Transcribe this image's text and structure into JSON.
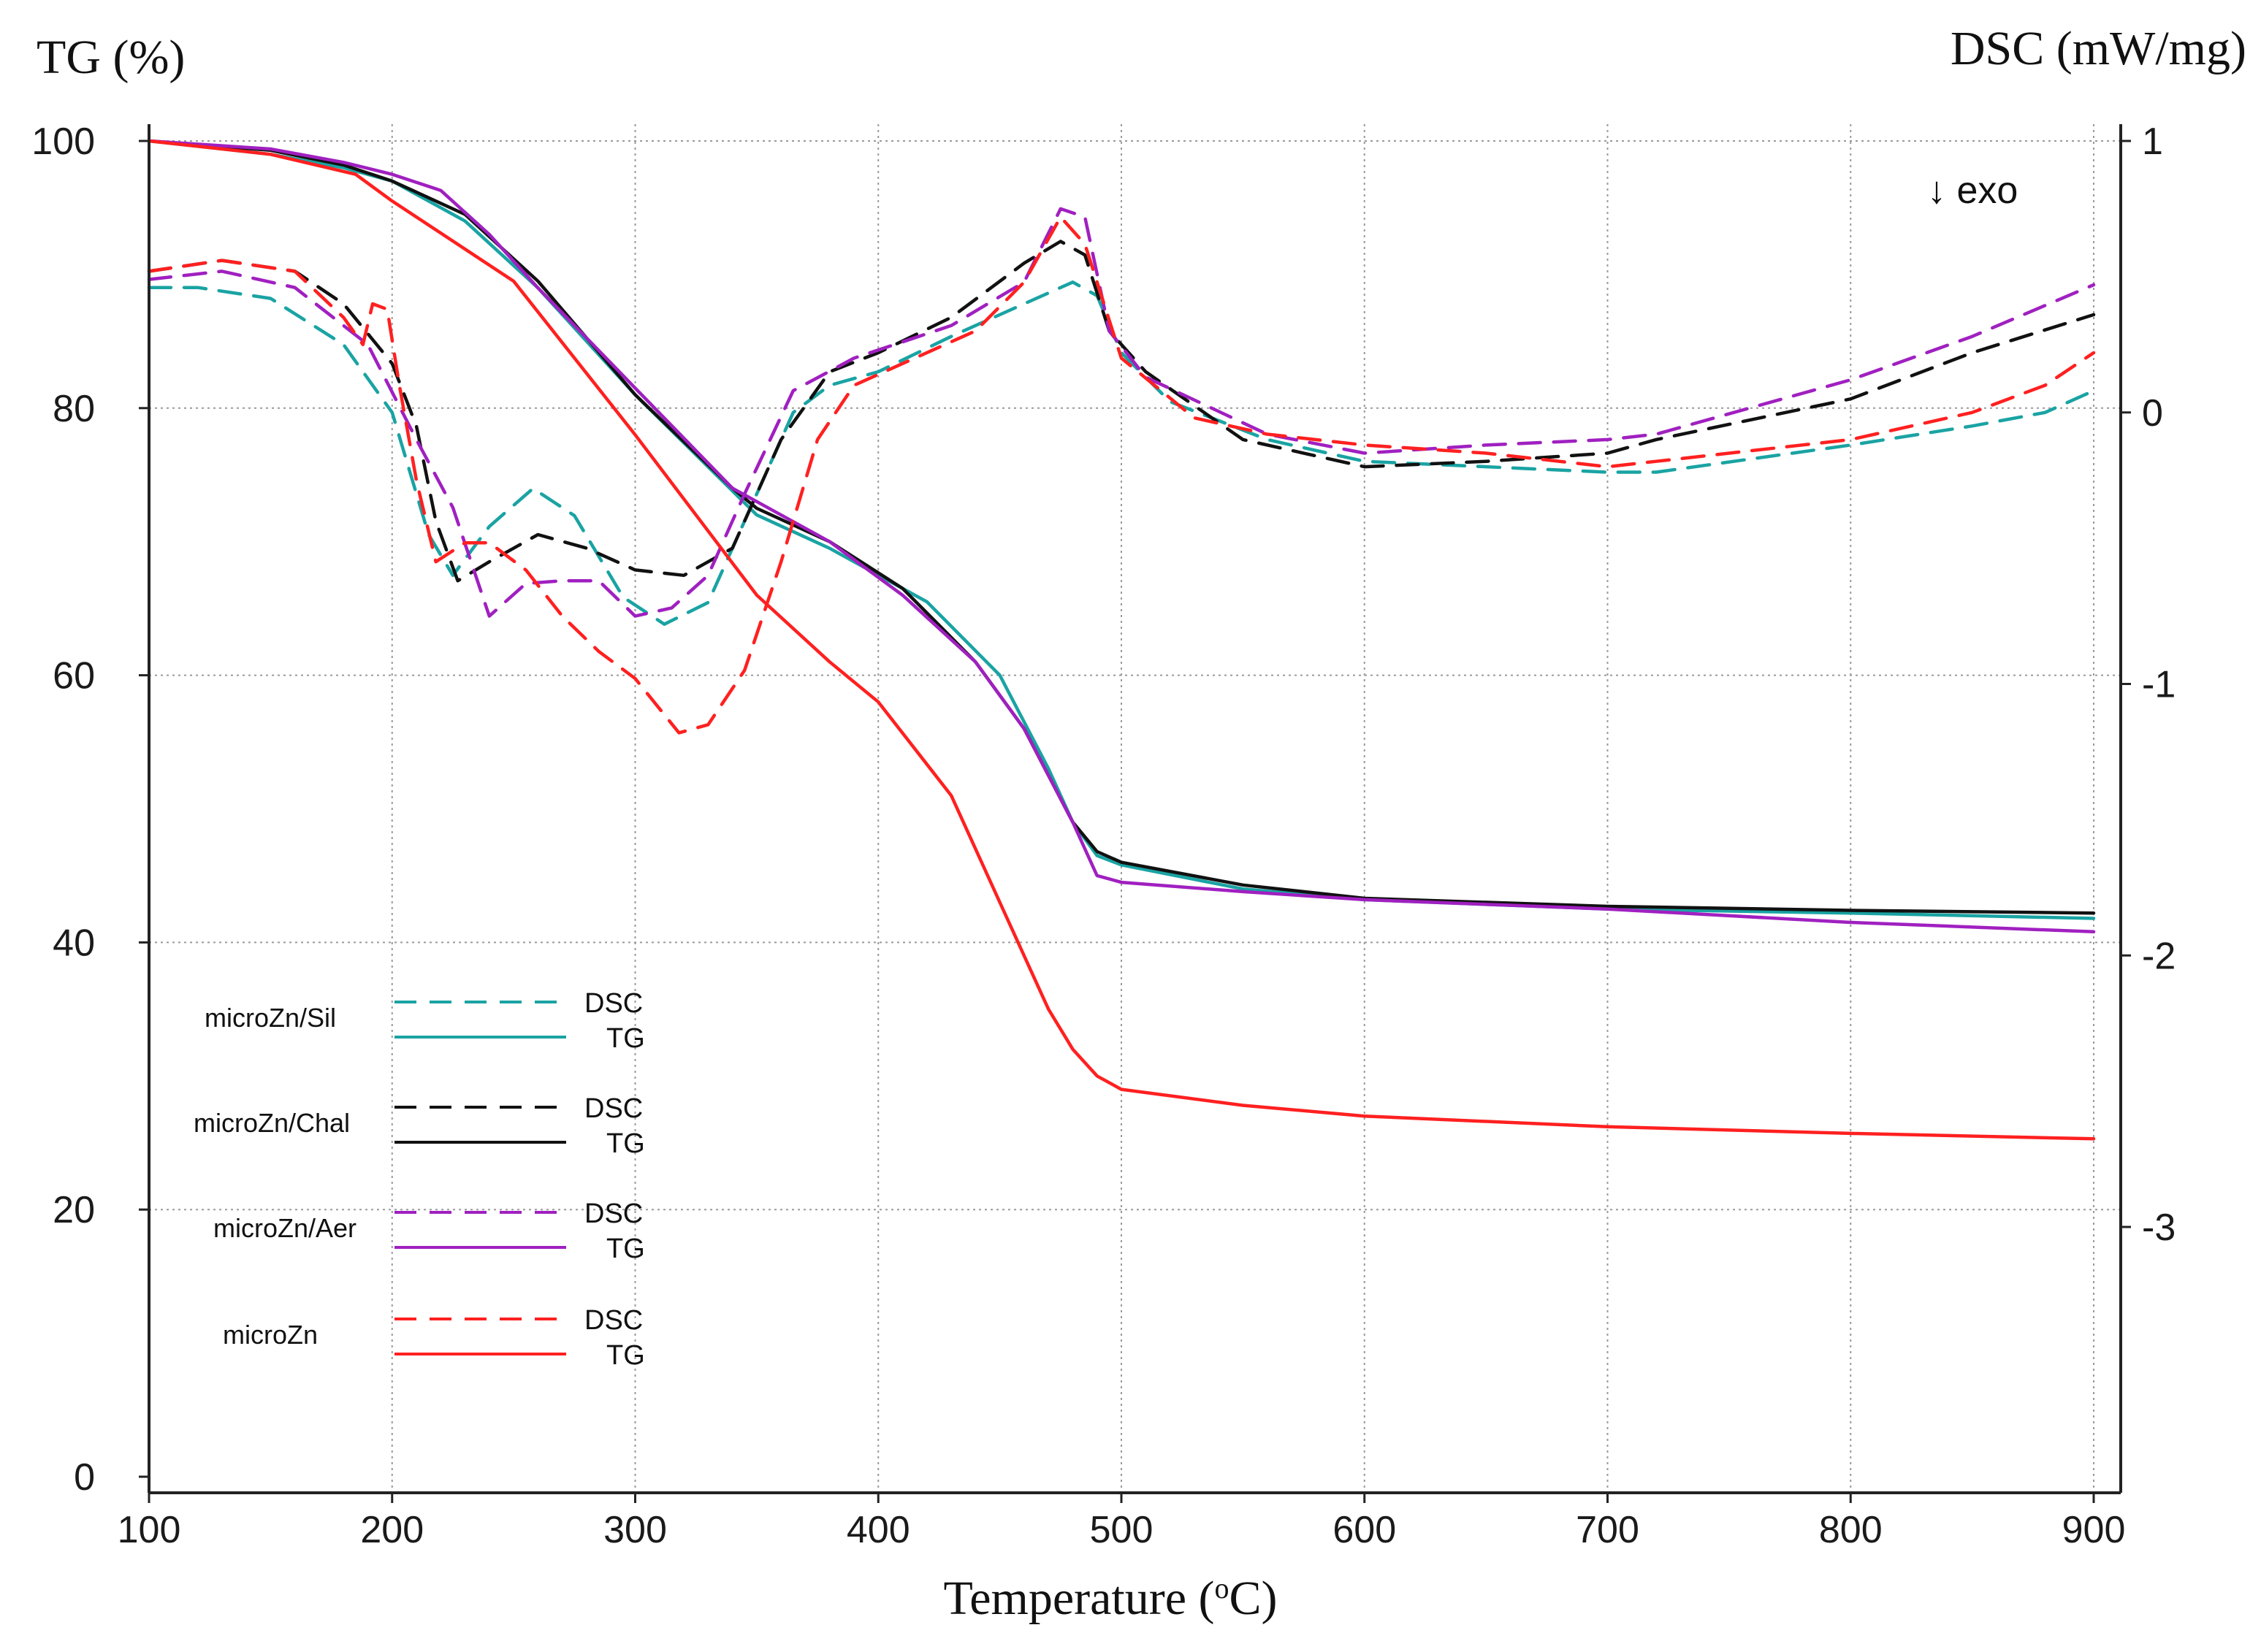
{
  "chart_data": {
    "type": "line",
    "title": "",
    "xlabel_main": "Temperature (",
    "xlabel_sup": "o",
    "xlabel_tail": "C)",
    "ylabel_left": "TG (%)",
    "ylabel_right": "DSC (mW/mg)",
    "annotation": "↓ exo",
    "xlim": [
      100,
      900
    ],
    "ylim_left": [
      0,
      100
    ],
    "ylim_right": [
      -4,
      1
    ],
    "xticks": [
      "100",
      "200",
      "300",
      "400",
      "500",
      "600",
      "700",
      "800",
      "900"
    ],
    "yticks_left": [
      "0",
      "20",
      "40",
      "60",
      "80",
      "100"
    ],
    "yticks_right": [
      "-3",
      "-2",
      "-1",
      "0",
      "1"
    ],
    "gridlines": [
      {
        "axis": "left",
        "value": 20
      },
      {
        "axis": "left",
        "value": 40
      },
      {
        "axis": "left",
        "value": 60
      },
      {
        "axis": "left",
        "value": 80
      },
      {
        "axis": "left",
        "value": 100
      }
    ],
    "vgridlines": [
      200,
      300,
      400,
      500,
      600,
      700,
      800,
      900
    ],
    "colors": {
      "microZn/Sil": "#1aa3a3",
      "microZn/Chal": "#111111",
      "microZn/Aer": "#a020c0",
      "microZn": "#ff2020"
    },
    "series": [
      {
        "name": "microZn/Sil",
        "kind": "TG",
        "axis": "left",
        "style": "solid",
        "color": "#1aa3a3",
        "points": [
          [
            100,
            100
          ],
          [
            150,
            99
          ],
          [
            180,
            98
          ],
          [
            200,
            97
          ],
          [
            230,
            94
          ],
          [
            260,
            89
          ],
          [
            300,
            81
          ],
          [
            350,
            72
          ],
          [
            380,
            69.5
          ],
          [
            420,
            65.5
          ],
          [
            450,
            60
          ],
          [
            470,
            53
          ],
          [
            480,
            49
          ],
          [
            490,
            46.5
          ],
          [
            500,
            45.8
          ],
          [
            550,
            44
          ],
          [
            600,
            43.2
          ],
          [
            700,
            42.5
          ],
          [
            800,
            42.2
          ],
          [
            900,
            41.8
          ]
        ]
      },
      {
        "name": "microZn/Sil",
        "kind": "DSC",
        "axis": "right",
        "style": "dashed",
        "color": "#1aa3a3",
        "points": [
          [
            100,
            0.46
          ],
          [
            120,
            0.46
          ],
          [
            150,
            0.42
          ],
          [
            180,
            0.25
          ],
          [
            200,
            0.0
          ],
          [
            215,
            -0.45
          ],
          [
            225,
            -0.6
          ],
          [
            240,
            -0.42
          ],
          [
            258,
            -0.28
          ],
          [
            275,
            -0.38
          ],
          [
            295,
            -0.68
          ],
          [
            312,
            -0.78
          ],
          [
            330,
            -0.7
          ],
          [
            350,
            -0.3
          ],
          [
            365,
            0.0
          ],
          [
            380,
            0.1
          ],
          [
            400,
            0.15
          ],
          [
            430,
            0.28
          ],
          [
            460,
            0.4
          ],
          [
            480,
            0.48
          ],
          [
            490,
            0.43
          ],
          [
            500,
            0.22
          ],
          [
            520,
            0.04
          ],
          [
            560,
            -0.1
          ],
          [
            600,
            -0.18
          ],
          [
            650,
            -0.2
          ],
          [
            700,
            -0.22
          ],
          [
            720,
            -0.22
          ],
          [
            800,
            -0.12
          ],
          [
            850,
            -0.05
          ],
          [
            880,
            0.0
          ],
          [
            900,
            0.08
          ]
        ]
      },
      {
        "name": "microZn/Chal",
        "kind": "TG",
        "axis": "left",
        "style": "solid",
        "color": "#111111",
        "points": [
          [
            100,
            100
          ],
          [
            150,
            99.3
          ],
          [
            180,
            98.2
          ],
          [
            200,
            97
          ],
          [
            230,
            94.5
          ],
          [
            260,
            89.5
          ],
          [
            300,
            81
          ],
          [
            340,
            74
          ],
          [
            350,
            72.5
          ],
          [
            380,
            70
          ],
          [
            410,
            66.5
          ],
          [
            440,
            61
          ],
          [
            460,
            56
          ],
          [
            480,
            49
          ],
          [
            490,
            46.8
          ],
          [
            500,
            46
          ],
          [
            550,
            44.3
          ],
          [
            600,
            43.3
          ],
          [
            700,
            42.7
          ],
          [
            800,
            42.4
          ],
          [
            900,
            42.2
          ]
        ]
      },
      {
        "name": "microZn/Chal",
        "kind": "DSC",
        "axis": "right",
        "style": "dashed",
        "color": "#111111",
        "points": [
          [
            100,
            0.52
          ],
          [
            130,
            0.56
          ],
          [
            160,
            0.52
          ],
          [
            180,
            0.4
          ],
          [
            200,
            0.18
          ],
          [
            210,
            -0.05
          ],
          [
            218,
            -0.4
          ],
          [
            227,
            -0.62
          ],
          [
            240,
            -0.55
          ],
          [
            260,
            -0.45
          ],
          [
            280,
            -0.5
          ],
          [
            300,
            -0.58
          ],
          [
            320,
            -0.6
          ],
          [
            340,
            -0.5
          ],
          [
            360,
            -0.1
          ],
          [
            380,
            0.15
          ],
          [
            400,
            0.22
          ],
          [
            430,
            0.35
          ],
          [
            460,
            0.55
          ],
          [
            475,
            0.63
          ],
          [
            485,
            0.58
          ],
          [
            495,
            0.3
          ],
          [
            510,
            0.15
          ],
          [
            550,
            -0.1
          ],
          [
            600,
            -0.2
          ],
          [
            650,
            -0.18
          ],
          [
            700,
            -0.15
          ],
          [
            720,
            -0.1
          ],
          [
            800,
            0.05
          ],
          [
            850,
            0.22
          ],
          [
            900,
            0.36
          ]
        ]
      },
      {
        "name": "microZn/Aer",
        "kind": "TG",
        "axis": "left",
        "style": "solid",
        "color": "#a020c0",
        "points": [
          [
            100,
            100
          ],
          [
            150,
            99.4
          ],
          [
            180,
            98.4
          ],
          [
            200,
            97.5
          ],
          [
            220,
            96.3
          ],
          [
            240,
            93
          ],
          [
            260,
            89
          ],
          [
            300,
            81.5
          ],
          [
            340,
            74
          ],
          [
            350,
            73
          ],
          [
            380,
            70
          ],
          [
            410,
            66
          ],
          [
            440,
            61
          ],
          [
            460,
            56
          ],
          [
            480,
            49
          ],
          [
            490,
            45
          ],
          [
            500,
            44.5
          ],
          [
            550,
            43.8
          ],
          [
            600,
            43.2
          ],
          [
            700,
            42.5
          ],
          [
            800,
            41.5
          ],
          [
            900,
            40.8
          ]
        ]
      },
      {
        "name": "microZn/Aer",
        "kind": "DSC",
        "axis": "right",
        "style": "dashed",
        "color": "#a020c0",
        "points": [
          [
            100,
            0.49
          ],
          [
            130,
            0.52
          ],
          [
            160,
            0.46
          ],
          [
            190,
            0.25
          ],
          [
            210,
            -0.1
          ],
          [
            225,
            -0.35
          ],
          [
            240,
            -0.75
          ],
          [
            255,
            -0.63
          ],
          [
            270,
            -0.62
          ],
          [
            285,
            -0.62
          ],
          [
            300,
            -0.75
          ],
          [
            315,
            -0.72
          ],
          [
            330,
            -0.6
          ],
          [
            345,
            -0.3
          ],
          [
            365,
            0.08
          ],
          [
            390,
            0.2
          ],
          [
            430,
            0.32
          ],
          [
            460,
            0.48
          ],
          [
            475,
            0.75
          ],
          [
            485,
            0.72
          ],
          [
            495,
            0.3
          ],
          [
            510,
            0.13
          ],
          [
            560,
            -0.08
          ],
          [
            600,
            -0.15
          ],
          [
            650,
            -0.12
          ],
          [
            700,
            -0.1
          ],
          [
            720,
            -0.08
          ],
          [
            800,
            0.12
          ],
          [
            850,
            0.28
          ],
          [
            900,
            0.47
          ]
        ]
      },
      {
        "name": "microZn",
        "kind": "TG",
        "axis": "left",
        "style": "solid",
        "color": "#ff2020",
        "points": [
          [
            100,
            100
          ],
          [
            150,
            99
          ],
          [
            185,
            97.5
          ],
          [
            200,
            95.5
          ],
          [
            250,
            89.5
          ],
          [
            300,
            78
          ],
          [
            350,
            66
          ],
          [
            380,
            61
          ],
          [
            400,
            58
          ],
          [
            430,
            51
          ],
          [
            450,
            43
          ],
          [
            470,
            35
          ],
          [
            480,
            32
          ],
          [
            490,
            30
          ],
          [
            500,
            29
          ],
          [
            550,
            27.8
          ],
          [
            600,
            27
          ],
          [
            700,
            26.2
          ],
          [
            800,
            25.7
          ],
          [
            900,
            25.3
          ]
        ]
      },
      {
        "name": "microZn",
        "kind": "DSC",
        "axis": "right",
        "style": "dashed",
        "color": "#ff2020",
        "points": [
          [
            100,
            0.52
          ],
          [
            130,
            0.56
          ],
          [
            160,
            0.52
          ],
          [
            180,
            0.35
          ],
          [
            188,
            0.25
          ],
          [
            192,
            0.4
          ],
          [
            198,
            0.38
          ],
          [
            203,
            0.1
          ],
          [
            210,
            -0.25
          ],
          [
            218,
            -0.55
          ],
          [
            230,
            -0.48
          ],
          [
            240,
            -0.48
          ],
          [
            255,
            -0.58
          ],
          [
            270,
            -0.75
          ],
          [
            285,
            -0.88
          ],
          [
            300,
            -0.98
          ],
          [
            318,
            -1.18
          ],
          [
            330,
            -1.15
          ],
          [
            345,
            -0.95
          ],
          [
            360,
            -0.55
          ],
          [
            375,
            -0.1
          ],
          [
            390,
            0.1
          ],
          [
            410,
            0.18
          ],
          [
            440,
            0.3
          ],
          [
            460,
            0.48
          ],
          [
            475,
            0.72
          ],
          [
            485,
            0.62
          ],
          [
            500,
            0.2
          ],
          [
            530,
            -0.02
          ],
          [
            560,
            -0.08
          ],
          [
            600,
            -0.12
          ],
          [
            650,
            -0.15
          ],
          [
            700,
            -0.2
          ],
          [
            720,
            -0.18
          ],
          [
            800,
            -0.1
          ],
          [
            850,
            0.0
          ],
          [
            880,
            0.1
          ],
          [
            900,
            0.22
          ]
        ]
      }
    ],
    "legend": {
      "placement": "bottom-left",
      "groups": [
        {
          "name": "microZn/Sil",
          "dsc_label": "DSC",
          "tg_label": "TG"
        },
        {
          "name": "microZn/Chal",
          "dsc_label": "DSC",
          "tg_label": "TG"
        },
        {
          "name": "microZn/Aer",
          "dsc_label": "DSC",
          "tg_label": "TG"
        },
        {
          "name": "microZn",
          "dsc_label": "DSC",
          "tg_label": "TG"
        }
      ]
    }
  }
}
